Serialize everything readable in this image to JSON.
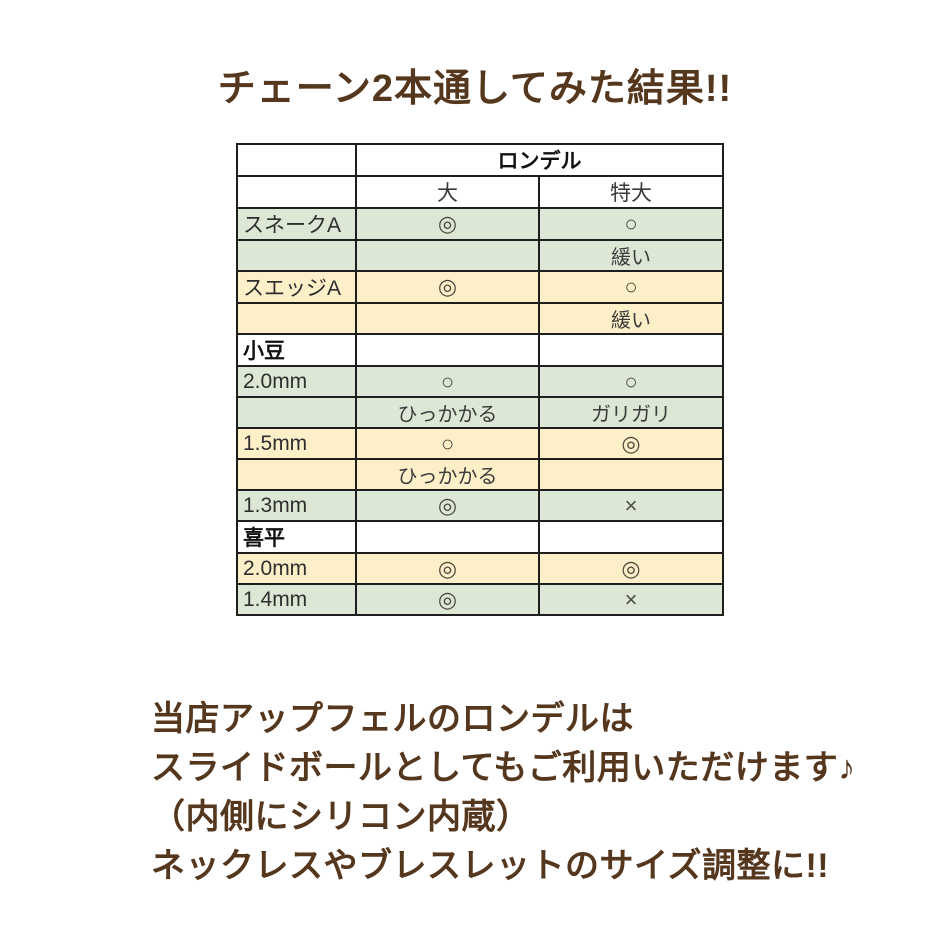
{
  "title": "チェーン2本通してみた結果!!",
  "colors": {
    "text_brown": "#55371e",
    "row_green": "#dce8d5",
    "row_yellow": "#fdefc8",
    "border": "#1e1e1e"
  },
  "table": {
    "header_group": "ロンデル",
    "columns": [
      "大",
      "特大"
    ],
    "rows": [
      {
        "label": "スネークA",
        "bold": false,
        "bg": "green",
        "sub": false,
        "cells": [
          "◎",
          "○"
        ]
      },
      {
        "label": "",
        "bold": false,
        "bg": "green",
        "sub": true,
        "cells": [
          "",
          "緩い"
        ]
      },
      {
        "label": "スエッジA",
        "bold": false,
        "bg": "yellow",
        "sub": false,
        "cells": [
          "◎",
          "○"
        ]
      },
      {
        "label": "",
        "bold": false,
        "bg": "yellow",
        "sub": true,
        "cells": [
          "",
          "緩い"
        ]
      },
      {
        "label": "小豆",
        "bold": true,
        "bg": "white",
        "sub": false,
        "cells": [
          "",
          ""
        ]
      },
      {
        "label": "2.0mm",
        "bold": false,
        "bg": "green",
        "sub": false,
        "cells": [
          "○",
          "○"
        ]
      },
      {
        "label": "",
        "bold": false,
        "bg": "green",
        "sub": true,
        "cells": [
          "ひっかかる",
          "ガリガリ"
        ]
      },
      {
        "label": "1.5mm",
        "bold": false,
        "bg": "yellow",
        "sub": false,
        "cells": [
          "○",
          "◎"
        ]
      },
      {
        "label": "",
        "bold": false,
        "bg": "yellow",
        "sub": true,
        "cells": [
          "ひっかかる",
          ""
        ]
      },
      {
        "label": "1.3mm",
        "bold": false,
        "bg": "green",
        "sub": false,
        "cells": [
          "◎",
          "×"
        ]
      },
      {
        "label": "喜平",
        "bold": true,
        "bg": "white",
        "sub": false,
        "cells": [
          "",
          ""
        ]
      },
      {
        "label": "2.0mm",
        "bold": false,
        "bg": "yellow",
        "sub": false,
        "cells": [
          "◎",
          "◎"
        ]
      },
      {
        "label": "1.4mm",
        "bold": false,
        "bg": "green",
        "sub": false,
        "cells": [
          "◎",
          "×"
        ]
      }
    ]
  },
  "footer_lines": [
    "当店アップフェルのロンデルは",
    "スライドボールとしてもご利用いただけます♪",
    "（内側にシリコン内蔵）",
    "ネックレスやブレスレットのサイズ調整に!!"
  ]
}
